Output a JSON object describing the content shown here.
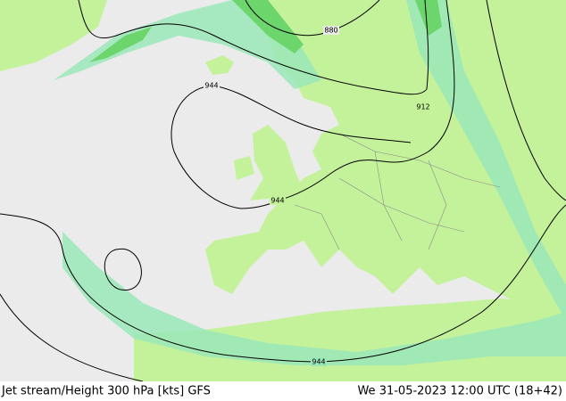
{
  "footer": {
    "title": "Jet stream/Height 300 hPa [kts] GFS",
    "valid_time": "We 31-05-2023 12:00 UTC (18+42)"
  },
  "contour_labels": [
    "880",
    "912",
    "944",
    "944",
    "944"
  ]
}
